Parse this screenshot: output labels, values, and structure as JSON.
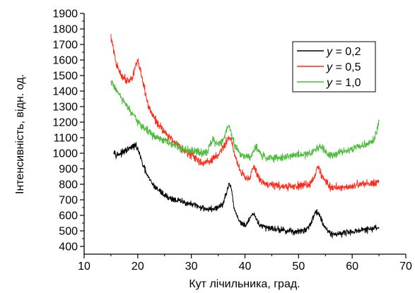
{
  "chart_data": {
    "type": "line",
    "xlabel": "Кут лічильника, град.",
    "ylabel": "Інтенсивність, відн. од.",
    "xlim": [
      10,
      70
    ],
    "ylim": [
      350,
      1900
    ],
    "xticks": [
      10,
      20,
      30,
      40,
      50,
      60,
      70
    ],
    "yticks": [
      400,
      500,
      600,
      700,
      800,
      900,
      1000,
      1100,
      1200,
      1300,
      1400,
      1500,
      1600,
      1700,
      1800,
      1900
    ],
    "grid": false,
    "legend_position": "top-right",
    "series": [
      {
        "name": "y = 0,2",
        "color": "#000000",
        "noise": 22,
        "x": [
          15.5,
          16,
          17,
          18,
          19,
          19.5,
          20,
          21,
          22,
          23,
          24,
          25,
          26,
          27,
          28,
          29,
          30,
          31,
          32,
          33,
          34,
          35,
          36,
          36.5,
          37,
          37.5,
          38,
          39,
          40,
          41,
          41.5,
          42,
          43,
          44,
          45,
          46,
          47,
          48,
          49,
          50,
          51,
          52,
          53,
          53.5,
          54,
          55,
          56,
          57,
          58,
          59,
          60,
          61,
          62,
          63,
          64,
          65
        ],
        "y": [
          1020,
          990,
          1000,
          1020,
          1040,
          1050,
          1030,
          920,
          840,
          790,
          760,
          730,
          710,
          700,
          690,
          680,
          670,
          660,
          650,
          640,
          640,
          650,
          680,
          740,
          800,
          760,
          640,
          560,
          530,
          580,
          610,
          580,
          530,
          520,
          520,
          510,
          505,
          500,
          495,
          495,
          500,
          530,
          610,
          630,
          590,
          520,
          480,
          480,
          485,
          490,
          495,
          500,
          505,
          510,
          515,
          520
        ]
      },
      {
        "name": "y = 0,5",
        "color": "#ff2a1a",
        "noise": 28,
        "x": [
          15,
          16,
          17,
          18,
          19,
          19.5,
          20,
          21,
          22,
          23,
          24,
          25,
          26,
          27,
          28,
          29,
          30,
          31,
          32,
          33,
          34,
          35,
          36,
          37,
          37.5,
          38,
          39,
          40,
          41,
          41.5,
          42,
          43,
          44,
          45,
          46,
          47,
          48,
          49,
          50,
          51,
          52,
          53,
          53.5,
          54,
          55,
          56,
          57,
          58,
          59,
          60,
          61,
          62,
          63,
          64,
          65
        ],
        "y": [
          1750,
          1570,
          1500,
          1470,
          1480,
          1560,
          1600,
          1450,
          1300,
          1230,
          1180,
          1140,
          1100,
          1070,
          1040,
          1010,
          990,
          960,
          940,
          940,
          960,
          990,
          1040,
          1100,
          1090,
          1000,
          900,
          840,
          850,
          920,
          880,
          820,
          800,
          800,
          790,
          790,
          780,
          785,
          790,
          790,
          800,
          850,
          920,
          880,
          820,
          780,
          780,
          780,
          785,
          790,
          795,
          800,
          805,
          810,
          820
        ]
      },
      {
        "name": "y = 1,0",
        "color": "#4cbc3a",
        "noise": 28,
        "x": [
          15,
          16,
          17,
          18,
          19,
          20,
          21,
          22,
          23,
          24,
          25,
          26,
          27,
          28,
          29,
          30,
          31,
          32,
          33,
          34,
          35,
          36,
          36.5,
          37,
          37.5,
          38,
          39,
          40,
          41,
          42,
          43,
          44,
          45,
          46,
          47,
          48,
          49,
          50,
          51,
          52,
          53,
          54,
          55,
          56,
          57,
          58,
          59,
          60,
          61,
          62,
          63,
          64,
          65
        ],
        "y": [
          1460,
          1410,
          1350,
          1300,
          1250,
          1200,
          1170,
          1140,
          1110,
          1090,
          1080,
          1060,
          1050,
          1030,
          1020,
          1010,
          1010,
          1000,
          1020,
          1080,
          1060,
          1080,
          1150,
          1180,
          1130,
          1060,
          1000,
          980,
          980,
          1040,
          990,
          970,
          970,
          970,
          975,
          980,
          985,
          990,
          990,
          1000,
          1020,
          1050,
          1010,
          990,
          1000,
          1010,
          1020,
          1030,
          1040,
          1050,
          1060,
          1080,
          1200
        ]
      }
    ]
  }
}
